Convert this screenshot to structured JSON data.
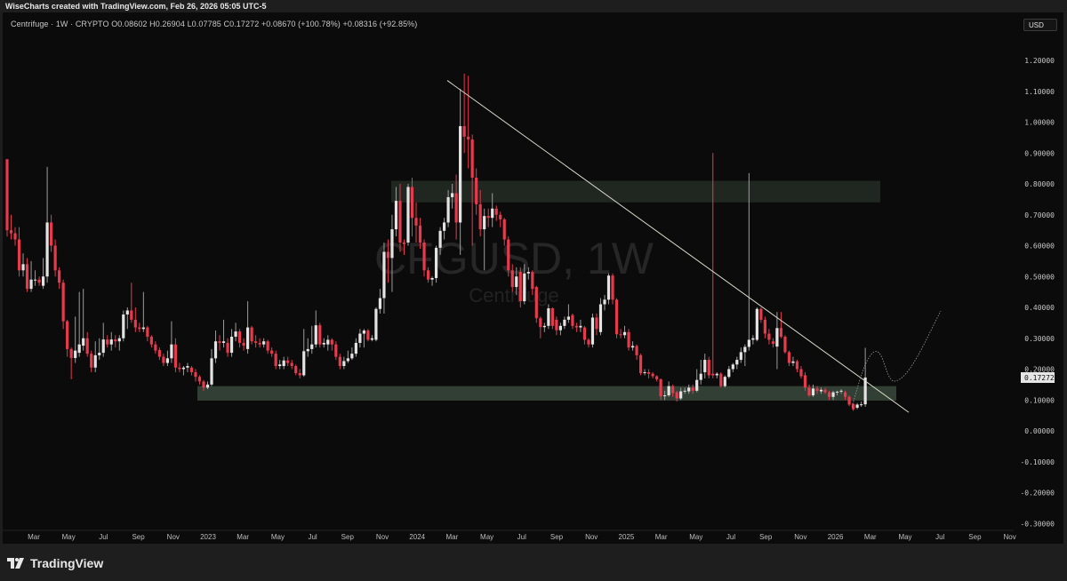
{
  "header": {
    "credit": "WiseCharts created with TradingView.com, Feb 26, 2026 05:05 UTC-5"
  },
  "legend": {
    "text": "Centrifuge · 1W · CRYPTO  O0.08602  H0.26904  L0.07785  C0.17272  +0.08670 (+100.78%)  +0.08316 (+92.85%)"
  },
  "currency_button": "USD",
  "watermark": {
    "symbol": "CFGUSD, 1W",
    "name": "Centrifuge"
  },
  "footer": {
    "brand": "TradingView"
  },
  "colors": {
    "up": "#e3e3e3",
    "down": "#e63a4d",
    "up_wick": "#9c9c9c",
    "zone": "#8fb894",
    "trendline": "#d8d8c8",
    "background": "#0b0b0b"
  },
  "chart_data": {
    "type": "candlestick",
    "symbol": "CFGUSD",
    "interval": "1W",
    "ylim": [
      -0.3,
      1.2
    ],
    "yticks": [
      "1.20000",
      "1.10000",
      "1.00000",
      "0.90000",
      "0.80000",
      "0.70000",
      "0.60000",
      "0.50000",
      "0.40000",
      "0.30000",
      "0.20000",
      "0.10000",
      "0.00000",
      "-0.10000",
      "-0.20000",
      "-0.30000"
    ],
    "ytick_values": [
      1.2,
      1.1,
      1.0,
      0.9,
      0.8,
      0.7,
      0.6,
      0.5,
      0.4,
      0.3,
      0.2,
      0.1,
      0,
      -0.1,
      -0.2,
      -0.3
    ],
    "xticks": [
      "Mar",
      "May",
      "Jul",
      "Sep",
      "Nov",
      "2023",
      "Mar",
      "May",
      "Jul",
      "Sep",
      "Nov",
      "2024",
      "Mar",
      "May",
      "Jul",
      "Sep",
      "Nov",
      "2025",
      "Mar",
      "May",
      "Jul",
      "Sep",
      "Nov",
      "2026",
      "Mar",
      "May",
      "Jul",
      "Sep",
      "Nov"
    ],
    "last_price": "0.17272",
    "candles_ohlc": [
      [
        0.88,
        0.88,
        0.63,
        0.65
      ],
      [
        0.65,
        0.7,
        0.62,
        0.64
      ],
      [
        0.64,
        0.66,
        0.6,
        0.62
      ],
      [
        0.62,
        0.66,
        0.5,
        0.52
      ],
      [
        0.52,
        0.575,
        0.5,
        0.54
      ],
      [
        0.54,
        0.56,
        0.45,
        0.46
      ],
      [
        0.46,
        0.55,
        0.45,
        0.49
      ],
      [
        0.49,
        0.52,
        0.47,
        0.49
      ],
      [
        0.49,
        0.5,
        0.47,
        0.48
      ],
      [
        0.47,
        0.56,
        0.46,
        0.5
      ],
      [
        0.5,
        0.855,
        0.48,
        0.675
      ],
      [
        0.675,
        0.7,
        0.58,
        0.6
      ],
      [
        0.6,
        0.62,
        0.5,
        0.52
      ],
      [
        0.52,
        0.53,
        0.46,
        0.48
      ],
      [
        0.48,
        0.49,
        0.33,
        0.355
      ],
      [
        0.355,
        0.36,
        0.24,
        0.265
      ],
      [
        0.265,
        0.27,
        0.167,
        0.236
      ],
      [
        0.236,
        0.37,
        0.22,
        0.26
      ],
      [
        0.253,
        0.45,
        0.24,
        0.28
      ],
      [
        0.276,
        0.46,
        0.26,
        0.3
      ],
      [
        0.3,
        0.32,
        0.24,
        0.25
      ],
      [
        0.25,
        0.26,
        0.19,
        0.205
      ],
      [
        0.205,
        0.29,
        0.19,
        0.245
      ],
      [
        0.245,
        0.3,
        0.23,
        0.253
      ],
      [
        0.253,
        0.35,
        0.24,
        0.296
      ],
      [
        0.296,
        0.31,
        0.27,
        0.28
      ],
      [
        0.28,
        0.32,
        0.26,
        0.296
      ],
      [
        0.296,
        0.31,
        0.27,
        0.29
      ],
      [
        0.29,
        0.31,
        0.26,
        0.3
      ],
      [
        0.3,
        0.39,
        0.29,
        0.377
      ],
      [
        0.377,
        0.4,
        0.33,
        0.39
      ],
      [
        0.39,
        0.48,
        0.35,
        0.36
      ],
      [
        0.36,
        0.4,
        0.32,
        0.335
      ],
      [
        0.335,
        0.35,
        0.32,
        0.33
      ],
      [
        0.33,
        0.45,
        0.32,
        0.335
      ],
      [
        0.335,
        0.34,
        0.29,
        0.305
      ],
      [
        0.305,
        0.31,
        0.27,
        0.28
      ],
      [
        0.28,
        0.29,
        0.25,
        0.26
      ],
      [
        0.262,
        0.27,
        0.23,
        0.24
      ],
      [
        0.24,
        0.25,
        0.21,
        0.22
      ],
      [
        0.22,
        0.26,
        0.21,
        0.235
      ],
      [
        0.235,
        0.355,
        0.22,
        0.28
      ],
      [
        0.28,
        0.3,
        0.19,
        0.205
      ],
      [
        0.205,
        0.22,
        0.19,
        0.2
      ],
      [
        0.2,
        0.21,
        0.18,
        0.205
      ],
      [
        0.205,
        0.22,
        0.19,
        0.21
      ],
      [
        0.205,
        0.21,
        0.18,
        0.19
      ],
      [
        0.19,
        0.2,
        0.16,
        0.175
      ],
      [
        0.175,
        0.18,
        0.15,
        0.16
      ],
      [
        0.16,
        0.165,
        0.13,
        0.14
      ],
      [
        0.14,
        0.16,
        0.135,
        0.15
      ],
      [
        0.15,
        0.265,
        0.145,
        0.235
      ],
      [
        0.235,
        0.325,
        0.22,
        0.29
      ],
      [
        0.29,
        0.31,
        0.26,
        0.285
      ],
      [
        0.285,
        0.36,
        0.27,
        0.29
      ],
      [
        0.285,
        0.3,
        0.24,
        0.253
      ],
      [
        0.253,
        0.33,
        0.24,
        0.305
      ],
      [
        0.305,
        0.35,
        0.29,
        0.322
      ],
      [
        0.322,
        0.33,
        0.27,
        0.285
      ],
      [
        0.285,
        0.3,
        0.26,
        0.276
      ],
      [
        0.265,
        0.42,
        0.25,
        0.335
      ],
      [
        0.335,
        0.34,
        0.28,
        0.29
      ],
      [
        0.29,
        0.31,
        0.27,
        0.285
      ],
      [
        0.285,
        0.3,
        0.27,
        0.28
      ],
      [
        0.28,
        0.3,
        0.27,
        0.29
      ],
      [
        0.29,
        0.295,
        0.25,
        0.26
      ],
      [
        0.26,
        0.27,
        0.24,
        0.25
      ],
      [
        0.25,
        0.26,
        0.2,
        0.21
      ],
      [
        0.21,
        0.23,
        0.2,
        0.215
      ],
      [
        0.21,
        0.24,
        0.2,
        0.228
      ],
      [
        0.228,
        0.24,
        0.21,
        0.22
      ],
      [
        0.22,
        0.23,
        0.2,
        0.21
      ],
      [
        0.21,
        0.215,
        0.18,
        0.187
      ],
      [
        0.187,
        0.2,
        0.17,
        0.18
      ],
      [
        0.18,
        0.33,
        0.175,
        0.258
      ],
      [
        0.258,
        0.3,
        0.24,
        0.265
      ],
      [
        0.265,
        0.34,
        0.25,
        0.28
      ],
      [
        0.28,
        0.39,
        0.27,
        0.342
      ],
      [
        0.342,
        0.35,
        0.27,
        0.28
      ],
      [
        0.28,
        0.3,
        0.27,
        0.285
      ],
      [
        0.28,
        0.31,
        0.26,
        0.295
      ],
      [
        0.295,
        0.3,
        0.26,
        0.28
      ],
      [
        0.28,
        0.29,
        0.23,
        0.24
      ],
      [
        0.24,
        0.25,
        0.2,
        0.21
      ],
      [
        0.21,
        0.24,
        0.2,
        0.226
      ],
      [
        0.226,
        0.26,
        0.22,
        0.235
      ],
      [
        0.235,
        0.27,
        0.23,
        0.25
      ],
      [
        0.25,
        0.3,
        0.24,
        0.285
      ],
      [
        0.285,
        0.33,
        0.27,
        0.315
      ],
      [
        0.315,
        0.33,
        0.27,
        0.325
      ],
      [
        0.325,
        0.33,
        0.29,
        0.295
      ],
      [
        0.295,
        0.31,
        0.29,
        0.3
      ],
      [
        0.295,
        0.4,
        0.29,
        0.395
      ],
      [
        0.395,
        0.46,
        0.38,
        0.43
      ],
      [
        0.43,
        0.61,
        0.38,
        0.58
      ],
      [
        0.58,
        0.62,
        0.48,
        0.56
      ],
      [
        0.56,
        0.7,
        0.45,
        0.653
      ],
      [
        0.653,
        0.79,
        0.63,
        0.745
      ],
      [
        0.745,
        0.8,
        0.58,
        0.61
      ],
      [
        0.61,
        0.62,
        0.57,
        0.605
      ],
      [
        0.61,
        0.8,
        0.6,
        0.79
      ],
      [
        0.79,
        0.82,
        0.63,
        0.69
      ],
      [
        0.69,
        0.74,
        0.61,
        0.665
      ],
      [
        0.665,
        0.69,
        0.59,
        0.61
      ],
      [
        0.61,
        0.62,
        0.5,
        0.52
      ],
      [
        0.52,
        0.53,
        0.48,
        0.49
      ],
      [
        0.49,
        0.5,
        0.47,
        0.495
      ],
      [
        0.495,
        0.6,
        0.48,
        0.593
      ],
      [
        0.593,
        0.66,
        0.57,
        0.648
      ],
      [
        0.648,
        0.69,
        0.62,
        0.675
      ],
      [
        0.675,
        0.78,
        0.66,
        0.757
      ],
      [
        0.757,
        0.8,
        0.72,
        0.77
      ],
      [
        0.77,
        0.83,
        0.62,
        0.675
      ],
      [
        0.675,
        1.108,
        0.57,
        0.987
      ],
      [
        0.987,
        1.157,
        0.9,
        0.953
      ],
      [
        0.953,
        1.15,
        0.85,
        0.944
      ],
      [
        0.944,
        0.96,
        0.6,
        0.82
      ],
      [
        0.82,
        0.85,
        0.7,
        0.734
      ],
      [
        0.734,
        0.78,
        0.63,
        0.653
      ],
      [
        0.653,
        0.72,
        0.52,
        0.696
      ],
      [
        0.696,
        0.72,
        0.66,
        0.69
      ],
      [
        0.69,
        0.77,
        0.66,
        0.72
      ],
      [
        0.72,
        0.73,
        0.68,
        0.7
      ],
      [
        0.7,
        0.71,
        0.66,
        0.685
      ],
      [
        0.685,
        0.69,
        0.6,
        0.62
      ],
      [
        0.62,
        0.63,
        0.5,
        0.52
      ],
      [
        0.52,
        0.54,
        0.45,
        0.466
      ],
      [
        0.466,
        0.53,
        0.44,
        0.5
      ],
      [
        0.515,
        0.53,
        0.4,
        0.42
      ],
      [
        0.42,
        0.54,
        0.41,
        0.51
      ],
      [
        0.51,
        0.53,
        0.49,
        0.515
      ],
      [
        0.515,
        0.52,
        0.44,
        0.46
      ],
      [
        0.466,
        0.47,
        0.35,
        0.365
      ],
      [
        0.365,
        0.37,
        0.3,
        0.336
      ],
      [
        0.336,
        0.35,
        0.32,
        0.34
      ],
      [
        0.34,
        0.41,
        0.33,
        0.397
      ],
      [
        0.397,
        0.4,
        0.33,
        0.34
      ],
      [
        0.36,
        0.37,
        0.31,
        0.326
      ],
      [
        0.326,
        0.35,
        0.31,
        0.34
      ],
      [
        0.34,
        0.37,
        0.33,
        0.36
      ],
      [
        0.36,
        0.41,
        0.35,
        0.37
      ],
      [
        0.375,
        0.38,
        0.33,
        0.34
      ],
      [
        0.34,
        0.35,
        0.32,
        0.335
      ],
      [
        0.335,
        0.36,
        0.32,
        0.34
      ],
      [
        0.335,
        0.34,
        0.28,
        0.295
      ],
      [
        0.295,
        0.3,
        0.27,
        0.28
      ],
      [
        0.28,
        0.38,
        0.27,
        0.367
      ],
      [
        0.367,
        0.38,
        0.31,
        0.33
      ],
      [
        0.32,
        0.43,
        0.31,
        0.41
      ],
      [
        0.41,
        0.44,
        0.39,
        0.425
      ],
      [
        0.425,
        0.51,
        0.41,
        0.503
      ],
      [
        0.503,
        0.51,
        0.41,
        0.425
      ],
      [
        0.425,
        0.43,
        0.3,
        0.313
      ],
      [
        0.313,
        0.33,
        0.3,
        0.31
      ],
      [
        0.31,
        0.34,
        0.3,
        0.32
      ],
      [
        0.32,
        0.33,
        0.26,
        0.27
      ],
      [
        0.27,
        0.29,
        0.26,
        0.275
      ],
      [
        0.275,
        0.28,
        0.23,
        0.245
      ],
      [
        0.245,
        0.25,
        0.18,
        0.187
      ],
      [
        0.187,
        0.2,
        0.18,
        0.19
      ],
      [
        0.19,
        0.2,
        0.17,
        0.185
      ],
      [
        0.185,
        0.19,
        0.17,
        0.177
      ],
      [
        0.177,
        0.18,
        0.16,
        0.167
      ],
      [
        0.167,
        0.17,
        0.1,
        0.112
      ],
      [
        0.112,
        0.13,
        0.1,
        0.115
      ],
      [
        0.115,
        0.16,
        0.11,
        0.145
      ],
      [
        0.145,
        0.15,
        0.11,
        0.122
      ],
      [
        0.125,
        0.13,
        0.095,
        0.105
      ],
      [
        0.105,
        0.14,
        0.1,
        0.128
      ],
      [
        0.128,
        0.14,
        0.12,
        0.13
      ],
      [
        0.128,
        0.15,
        0.12,
        0.14
      ],
      [
        0.14,
        0.15,
        0.12,
        0.13
      ],
      [
        0.13,
        0.2,
        0.125,
        0.165
      ],
      [
        0.165,
        0.23,
        0.15,
        0.185
      ],
      [
        0.19,
        0.25,
        0.17,
        0.23
      ],
      [
        0.23,
        0.24,
        0.17,
        0.18
      ],
      [
        0.185,
        0.9,
        0.17,
        0.18
      ],
      [
        0.18,
        0.19,
        0.17,
        0.185
      ],
      [
        0.185,
        0.19,
        0.14,
        0.145
      ],
      [
        0.145,
        0.18,
        0.14,
        0.175
      ],
      [
        0.175,
        0.21,
        0.17,
        0.2
      ],
      [
        0.2,
        0.22,
        0.19,
        0.215
      ],
      [
        0.215,
        0.24,
        0.2,
        0.23
      ],
      [
        0.23,
        0.27,
        0.22,
        0.255
      ],
      [
        0.255,
        0.28,
        0.21,
        0.272
      ],
      [
        0.272,
        0.835,
        0.26,
        0.295
      ],
      [
        0.295,
        0.31,
        0.28,
        0.3
      ],
      [
        0.295,
        0.4,
        0.29,
        0.395
      ],
      [
        0.395,
        0.4,
        0.35,
        0.36
      ],
      [
        0.36,
        0.37,
        0.3,
        0.315
      ],
      [
        0.315,
        0.33,
        0.28,
        0.295
      ],
      [
        0.29,
        0.3,
        0.27,
        0.282
      ],
      [
        0.273,
        0.385,
        0.2,
        0.333
      ],
      [
        0.333,
        0.385,
        0.3,
        0.305
      ],
      [
        0.305,
        0.31,
        0.25,
        0.255
      ],
      [
        0.255,
        0.26,
        0.21,
        0.22
      ],
      [
        0.22,
        0.24,
        0.21,
        0.225
      ],
      [
        0.225,
        0.23,
        0.19,
        0.2
      ],
      [
        0.2,
        0.21,
        0.17,
        0.177
      ],
      [
        0.18,
        0.19,
        0.13,
        0.14
      ],
      [
        0.14,
        0.15,
        0.11,
        0.115
      ],
      [
        0.115,
        0.15,
        0.11,
        0.137
      ],
      [
        0.137,
        0.145,
        0.12,
        0.13
      ],
      [
        0.128,
        0.14,
        0.12,
        0.133
      ],
      [
        0.133,
        0.14,
        0.12,
        0.125
      ],
      [
        0.125,
        0.13,
        0.1,
        0.11
      ],
      [
        0.11,
        0.13,
        0.1,
        0.125
      ],
      [
        0.125,
        0.13,
        0.115,
        0.127
      ],
      [
        0.127,
        0.135,
        0.12,
        0.13
      ],
      [
        0.125,
        0.13,
        0.1,
        0.11
      ],
      [
        0.11,
        0.115,
        0.08,
        0.085
      ],
      [
        0.087,
        0.09,
        0.065,
        0.07
      ],
      [
        0.075,
        0.09,
        0.07,
        0.085
      ],
      [
        0.084,
        0.095,
        0.078,
        0.086
      ],
      [
        0.08602,
        0.26904,
        0.07785,
        0.17272
      ]
    ],
    "zones": [
      {
        "from": 0.74,
        "to": 0.81
      },
      {
        "from": 0.098,
        "to": 0.145
      }
    ],
    "trendline": {
      "from_price": 1.135,
      "to_price": 0.06
    }
  }
}
